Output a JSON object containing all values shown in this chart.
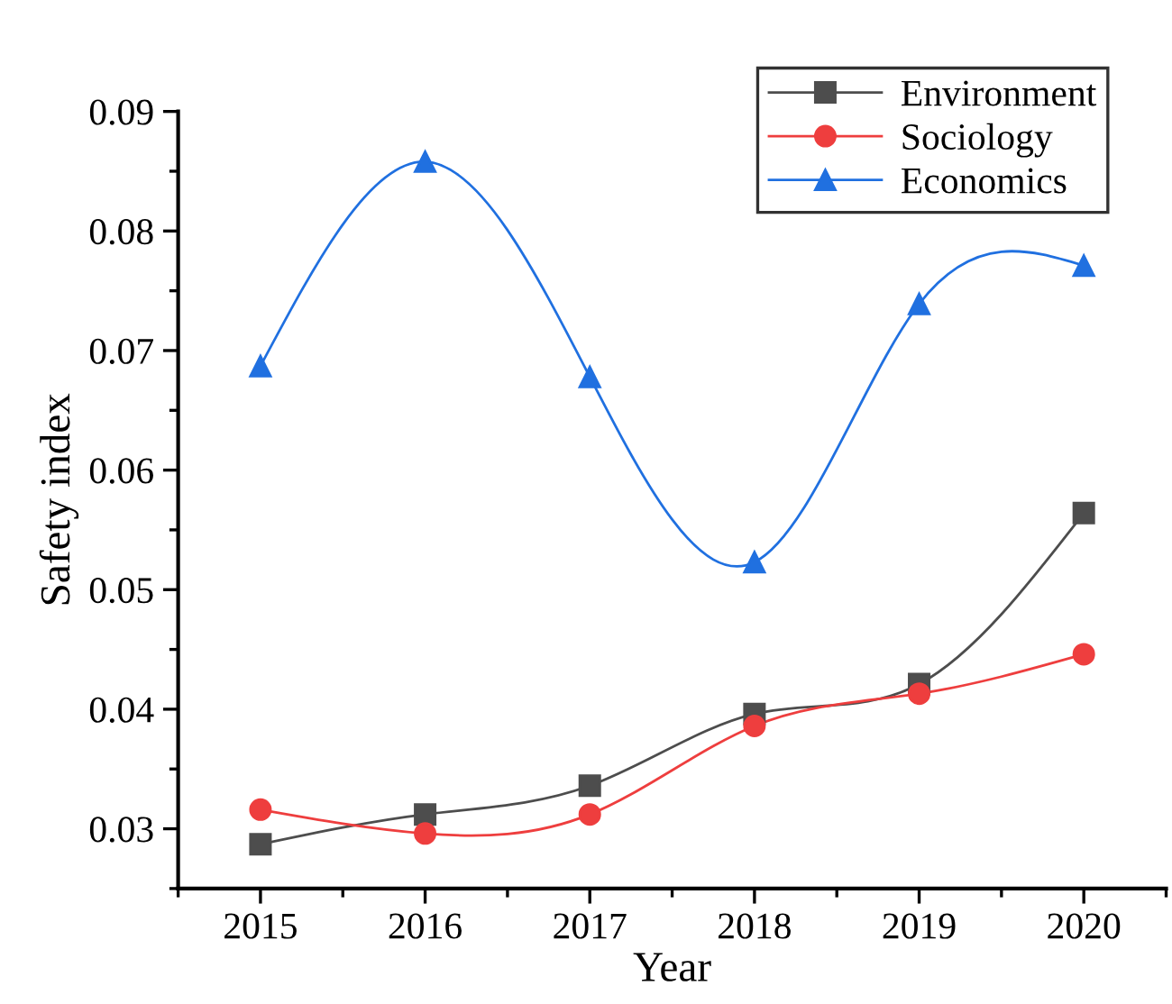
{
  "chart_data": {
    "type": "line",
    "xlabel": "Year",
    "ylabel": "Safety index",
    "x": [
      2015,
      2016,
      2017,
      2018,
      2019,
      2020
    ],
    "series": [
      {
        "name": "Environment",
        "color": "#4d4d4d",
        "marker": "square",
        "values": [
          0.0287,
          0.0312,
          0.0336,
          0.0396,
          0.0421,
          0.0564
        ]
      },
      {
        "name": "Sociology",
        "color": "#ee3e3e",
        "marker": "circle",
        "values": [
          0.0316,
          0.0296,
          0.0312,
          0.0386,
          0.0413,
          0.0446
        ]
      },
      {
        "name": "Economics",
        "color": "#2070e0",
        "marker": "triangle",
        "values": [
          0.0687,
          0.0858,
          0.0678,
          0.0523,
          0.0739,
          0.0771
        ]
      }
    ],
    "xlim": [
      2014.5,
      2020.5
    ],
    "xticks": [
      2015,
      2016,
      2017,
      2018,
      2019,
      2020
    ],
    "ylim": [
      0.025,
      0.09
    ],
    "yticks": [
      0.03,
      0.04,
      0.05,
      0.06,
      0.07,
      0.08,
      0.09
    ],
    "grid": false,
    "legend": "top right",
    "line_style": "solid"
  }
}
